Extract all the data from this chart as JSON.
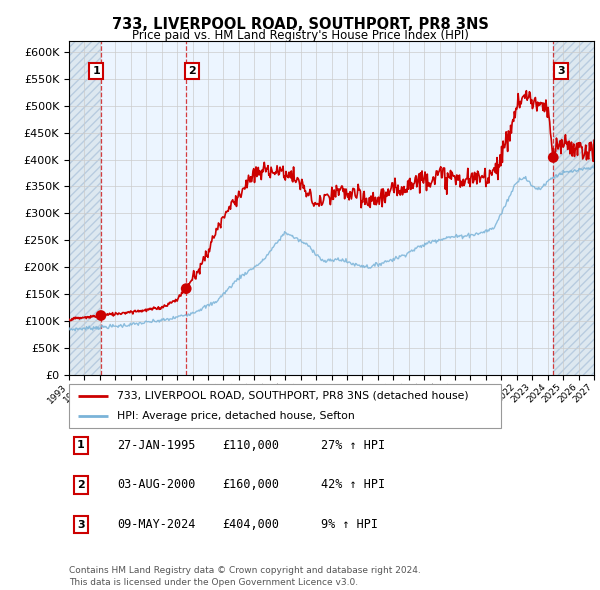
{
  "title": "733, LIVERPOOL ROAD, SOUTHPORT, PR8 3NS",
  "subtitle": "Price paid vs. HM Land Registry's House Price Index (HPI)",
  "xlim_start": 1993.0,
  "xlim_end": 2027.0,
  "ylim": [
    0,
    620000
  ],
  "yticks": [
    0,
    50000,
    100000,
    150000,
    200000,
    250000,
    300000,
    350000,
    400000,
    450000,
    500000,
    550000,
    600000
  ],
  "sale_dates": [
    1995.07,
    2000.59,
    2024.36
  ],
  "sale_prices": [
    110000,
    160000,
    404000
  ],
  "hpi_color": "#7ab3d8",
  "price_color": "#cc0000",
  "legend_line1": "733, LIVERPOOL ROAD, SOUTHPORT, PR8 3NS (detached house)",
  "legend_line2": "HPI: Average price, detached house, Sefton",
  "table_rows": [
    {
      "num": "1",
      "date": "27-JAN-1995",
      "price": "£110,000",
      "hpi": "27% ↑ HPI"
    },
    {
      "num": "2",
      "date": "03-AUG-2000",
      "price": "£160,000",
      "hpi": "42% ↑ HPI"
    },
    {
      "num": "3",
      "date": "09-MAY-2024",
      "price": "£404,000",
      "hpi": "9% ↑ HPI"
    }
  ],
  "footer": "Contains HM Land Registry data © Crown copyright and database right 2024.\nThis data is licensed under the Open Government Licence v3.0."
}
